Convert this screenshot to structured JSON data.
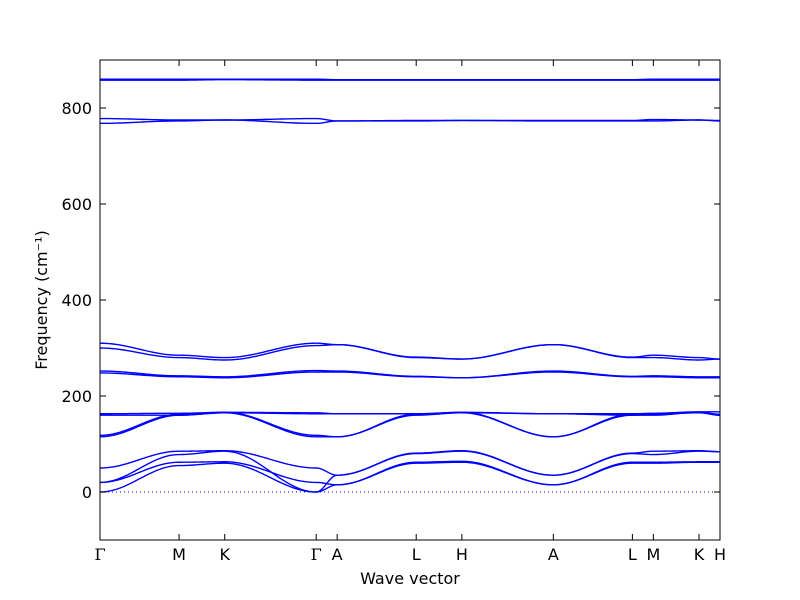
{
  "chart_data": {
    "type": "line",
    "xlabel": "Wave vector",
    "ylabel": "Frequency (cm⁻¹)",
    "ylim": [
      -100,
      900
    ],
    "yticks": [
      0,
      200,
      400,
      600,
      800
    ],
    "zero_line": true,
    "series_color": "#0000ff",
    "high_symmetry_points": [
      {
        "label": "Γ",
        "x": 0.0
      },
      {
        "label": "M",
        "x": 0.637
      },
      {
        "label": "K",
        "x": 1.005
      },
      {
        "label": "Γ",
        "x": 1.742
      },
      {
        "label": "A",
        "x": 1.911
      },
      {
        "label": "L",
        "x": 2.548
      },
      {
        "label": "H",
        "x": 2.916
      },
      {
        "label": "A",
        "x": 3.653
      },
      {
        "label": "L",
        "x": 4.29
      },
      {
        "label": "M",
        "x": 4.459
      },
      {
        "label": "K",
        "x": 4.827
      },
      {
        "label": "H",
        "x": 4.996
      }
    ],
    "bands": [
      {
        "name": "Band 1",
        "values": [
          0,
          55,
          60,
          0,
          15,
          60,
          62,
          15,
          60,
          60,
          62,
          62
        ]
      },
      {
        "name": "Band 2",
        "values": [
          20,
          62,
          63,
          20,
          15,
          62,
          64,
          15,
          62,
          62,
          63,
          63
        ]
      },
      {
        "name": "Band 3",
        "values": [
          20,
          78,
          85,
          0,
          35,
          80,
          85,
          35,
          80,
          78,
          85,
          84
        ]
      },
      {
        "name": "Band 4",
        "values": [
          50,
          85,
          86,
          50,
          35,
          81,
          86,
          35,
          81,
          85,
          86,
          84
        ]
      },
      {
        "name": "Band 5",
        "values": [
          115,
          160,
          165,
          115,
          115,
          160,
          165,
          115,
          160,
          162,
          165,
          160
        ]
      },
      {
        "name": "Band 6",
        "values": [
          118,
          162,
          166,
          118,
          115,
          162,
          166,
          115,
          162,
          163,
          166,
          162
        ]
      },
      {
        "name": "Band 7",
        "values": [
          160,
          160,
          165,
          163,
          163,
          163,
          165,
          163,
          160,
          160,
          166,
          160
        ]
      },
      {
        "name": "Band 8",
        "values": [
          163,
          164,
          166,
          165,
          163,
          163,
          166,
          163,
          163,
          164,
          167,
          167
        ]
      },
      {
        "name": "Band 9",
        "values": [
          248,
          240,
          238,
          250,
          250,
          240,
          238,
          250,
          240,
          240,
          238,
          238
        ]
      },
      {
        "name": "Band 10",
        "values": [
          252,
          242,
          240,
          253,
          252,
          241,
          238,
          252,
          241,
          242,
          240,
          240
        ]
      },
      {
        "name": "Band 11",
        "values": [
          300,
          280,
          275,
          305,
          307,
          280,
          277,
          307,
          280,
          280,
          275,
          277
        ]
      },
      {
        "name": "Band 12",
        "values": [
          310,
          285,
          280,
          310,
          307,
          281,
          277,
          307,
          281,
          285,
          280,
          277
        ]
      },
      {
        "name": "Band 13",
        "values": [
          768,
          773,
          775,
          768,
          773,
          773,
          774,
          773,
          773,
          773,
          775,
          773
        ]
      },
      {
        "name": "Band 14",
        "values": [
          778,
          775,
          775,
          778,
          773,
          774,
          774,
          774,
          774,
          776,
          775,
          774
        ]
      },
      {
        "name": "Band 15",
        "values": [
          858,
          858,
          859,
          858,
          858,
          858,
          858,
          858,
          858,
          858,
          858,
          858
        ]
      },
      {
        "name": "Band 16",
        "values": [
          860,
          860,
          860,
          860,
          859,
          859,
          859,
          859,
          859,
          860,
          860,
          860
        ]
      }
    ]
  }
}
